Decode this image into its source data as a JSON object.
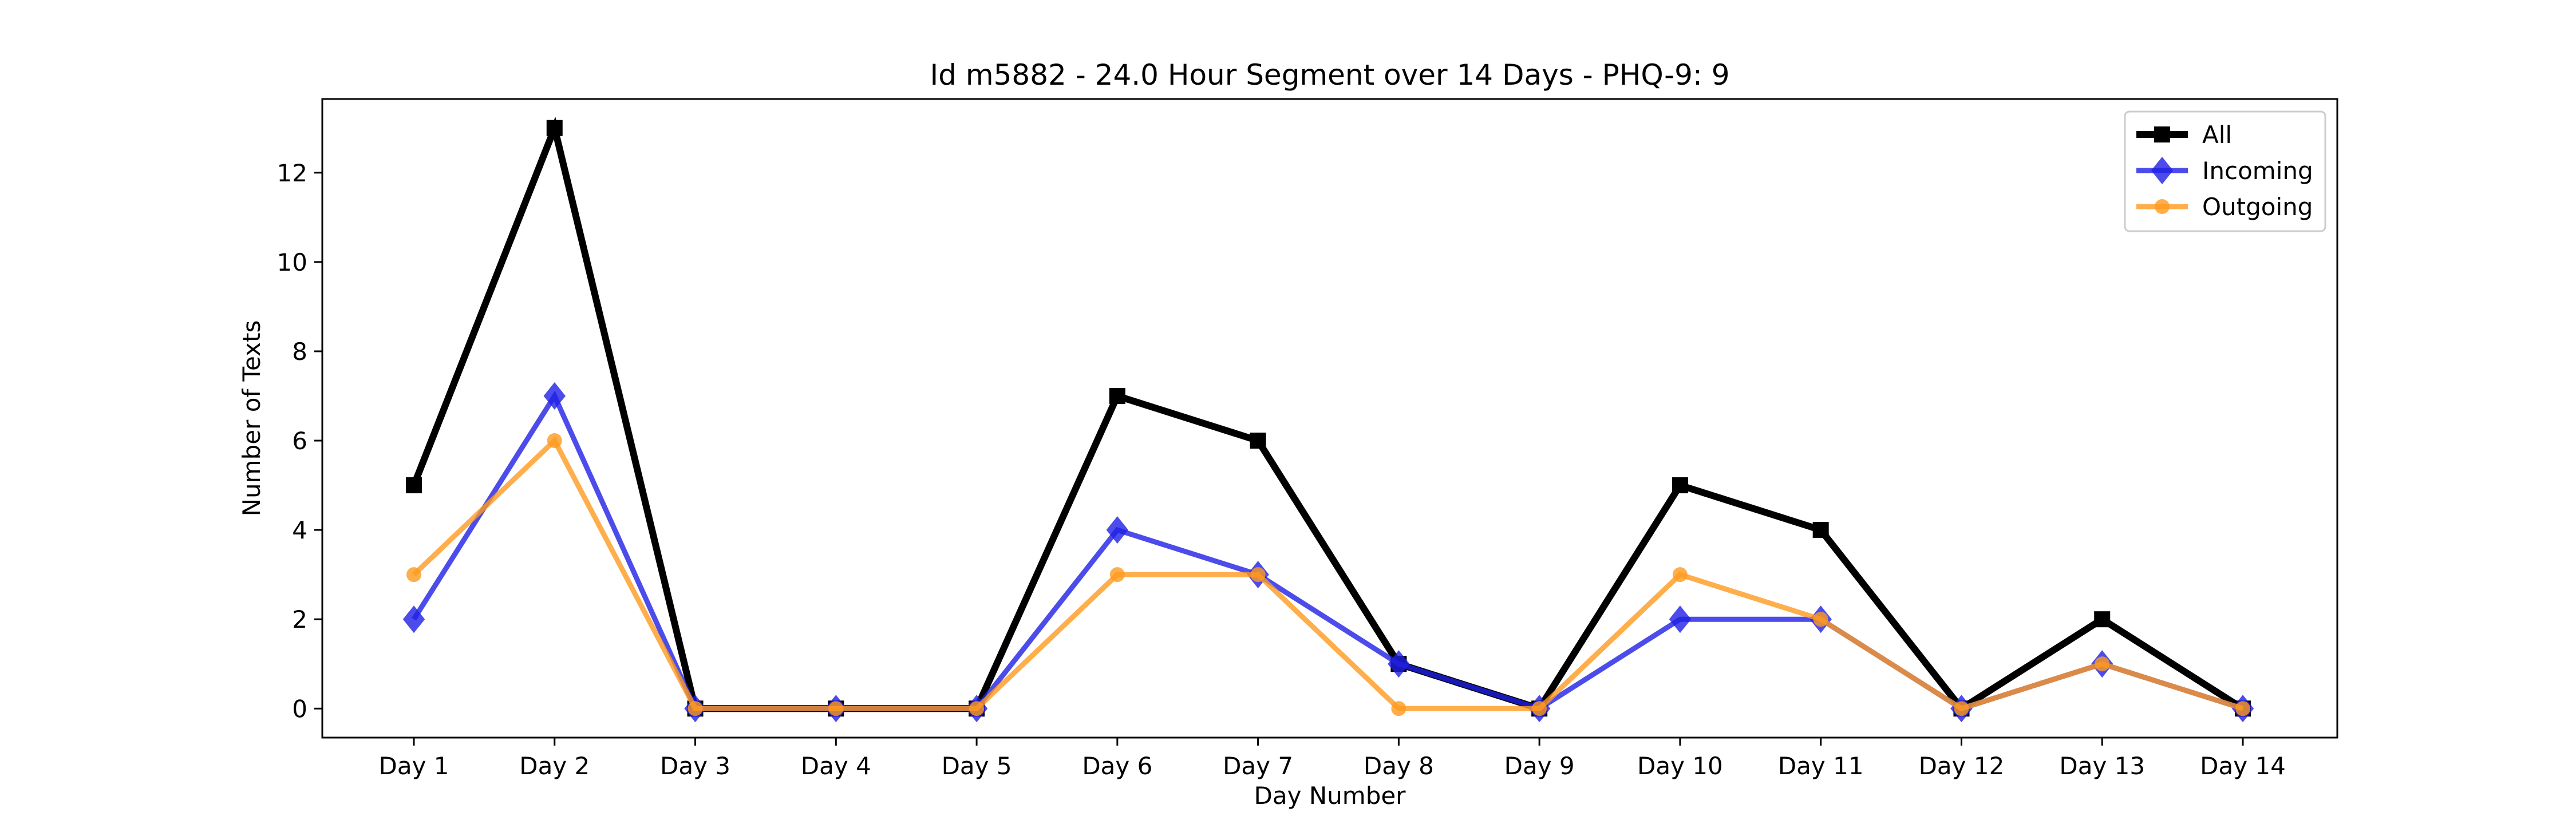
{
  "chart_data": {
    "type": "line",
    "title": "Id m5882 - 24.0 Hour Segment over 14 Days - PHQ-9: 9",
    "xlabel": "Day Number",
    "ylabel": "Number of Texts",
    "categories": [
      "Day 1",
      "Day 2",
      "Day 3",
      "Day 4",
      "Day 5",
      "Day 6",
      "Day 7",
      "Day 8",
      "Day 9",
      "Day 10",
      "Day 11",
      "Day 12",
      "Day 13",
      "Day 14"
    ],
    "ylim": [
      -0.65,
      13.65
    ],
    "yticks": [
      0,
      2,
      4,
      6,
      8,
      10,
      12
    ],
    "grid": false,
    "legend_position": "top-right",
    "series": [
      {
        "name": "All",
        "values": [
          5,
          13,
          0,
          0,
          0,
          7,
          6,
          1,
          0,
          5,
          4,
          0,
          2,
          0
        ],
        "color": "#000000",
        "marker": "square"
      },
      {
        "name": "Incoming",
        "values": [
          2,
          7,
          0,
          0,
          0,
          4,
          3,
          1,
          0,
          2,
          2,
          0,
          1,
          0
        ],
        "color": "#1f1fe6",
        "marker": "diamond"
      },
      {
        "name": "Outgoing",
        "values": [
          3,
          6,
          0,
          0,
          0,
          3,
          3,
          0,
          0,
          3,
          2,
          0,
          1,
          0
        ],
        "color": "#ff9a1f",
        "marker": "circle"
      }
    ]
  }
}
